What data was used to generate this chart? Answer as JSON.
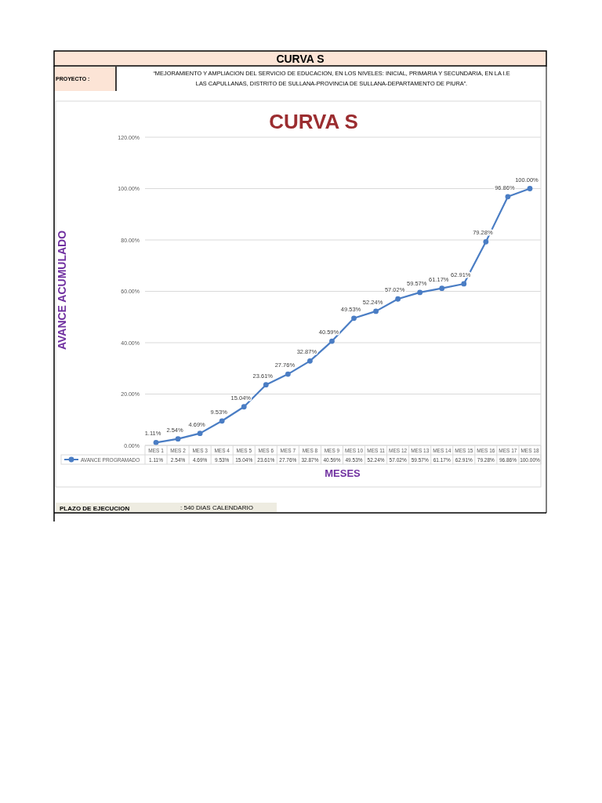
{
  "chart_data": {
    "type": "line",
    "title": "CURVA S",
    "xlabel": "MESES",
    "ylabel": "AVANCE ACUMULADO",
    "annotations": [
      "CURVA S",
      "PROYECTO :",
      "“MEJORAMIENTO Y AMPLIACION DEL SERVICIO DE EDUCACION, EN LOS NIVELES: INICIAL, PRIMARIA Y SECUNDARIA, EN LA I.E LAS CAPULLANAS, DISTRITO DE SULLANA-PROVINCIA DE SULLANA-DEPARTAMENTO DE PIURA”.",
      "PLAZO DE EJECUCION",
      ": 540 DIAS CALENDARIO"
    ],
    "categories": [
      "MES 1",
      "MES 2",
      "MES 3",
      "MES 4",
      "MES 5",
      "MES 6",
      "MES 7",
      "MES 8",
      "MES 9",
      "MES 10",
      "MES 11",
      "MES 12",
      "MES 13",
      "MES 14",
      "MES 15",
      "MES 16",
      "MES 17",
      "MES 18"
    ],
    "series": [
      {
        "name": "AVANCE PROGRAMADO",
        "color": "#4a7dc4",
        "values": [
          1.11,
          2.54,
          4.69,
          9.53,
          15.04,
          23.61,
          27.76,
          32.87,
          40.59,
          49.53,
          52.24,
          57.02,
          59.57,
          61.17,
          62.91,
          79.28,
          96.86,
          100
        ],
        "value_labels": [
          "1.11%",
          "2.54%",
          "4.69%",
          "9.53%",
          "15.04%",
          "23.61%",
          "27.76%",
          "32.87%",
          "40.59%",
          "49.53%",
          "52.24%",
          "57.02%",
          "59.57%",
          "61.17%",
          "62.91%",
          "79.28%",
          "96.86%",
          "100.00%"
        ]
      }
    ],
    "ylim": [
      0,
      120
    ],
    "yticks": [
      {
        "value": 0,
        "label": "0.00%"
      },
      {
        "value": 20,
        "label": "20.00%"
      },
      {
        "value": 40,
        "label": "40.00%"
      },
      {
        "value": 60,
        "label": "60.00%"
      },
      {
        "value": 80,
        "label": "80.00%"
      },
      {
        "value": 100,
        "label": "100.00%"
      },
      {
        "value": 120,
        "label": "120.00%"
      }
    ],
    "grid": "y",
    "legend": "bottom",
    "marker": "circle",
    "line_style": "solid"
  }
}
